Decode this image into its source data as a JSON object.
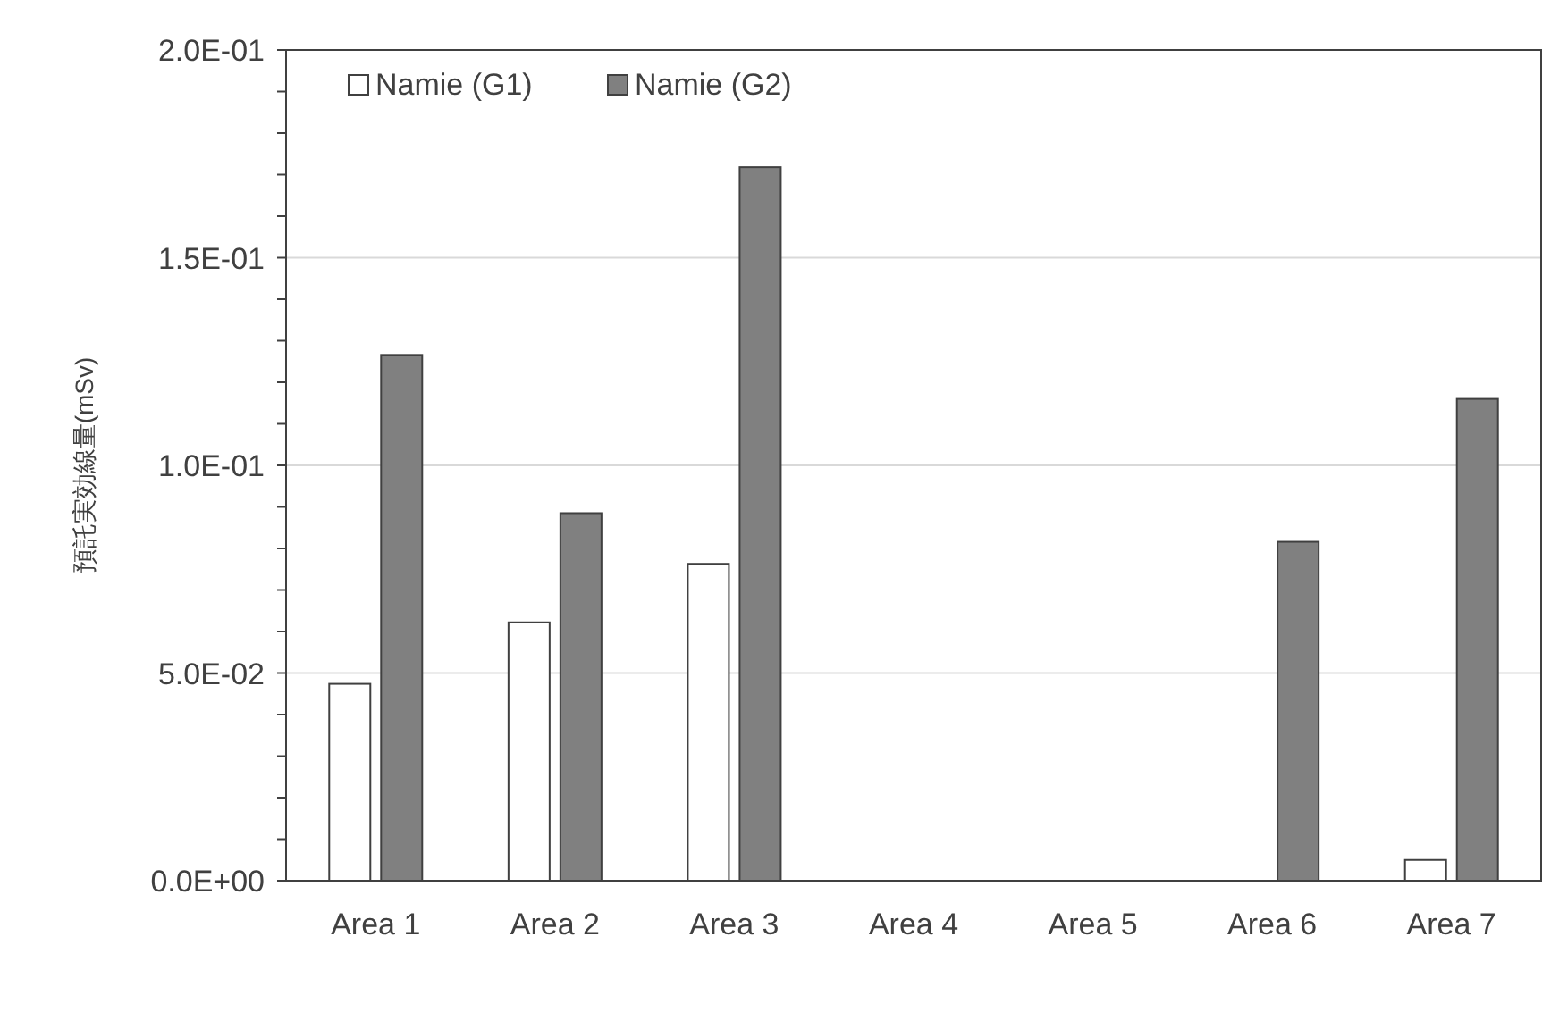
{
  "chart_data": {
    "type": "bar",
    "ylabel": "預託実効線量(mSv)",
    "categories": [
      "Area 1",
      "Area 2",
      "Area 3",
      "Area 4",
      "Area 5",
      "Area 6",
      "Area 7"
    ],
    "series": [
      {
        "name": "Namie (G1)",
        "color": "#ffffff",
        "values": [
          0.0474,
          0.0622,
          0.0763,
          null,
          null,
          null,
          0.005
        ]
      },
      {
        "name": "Namie (G2)",
        "color": "#808080",
        "values": [
          0.1266,
          0.0885,
          0.1718,
          null,
          null,
          0.0816,
          0.116
        ]
      }
    ],
    "ylim": [
      0,
      0.2
    ],
    "yticks": [
      {
        "value": 0,
        "label": "0.0E+00"
      },
      {
        "value": 0.01,
        "label": null
      },
      {
        "value": 0.02,
        "label": null
      },
      {
        "value": 0.03,
        "label": null
      },
      {
        "value": 0.04,
        "label": null
      },
      {
        "value": 0.05,
        "label": "5.0E-02"
      },
      {
        "value": 0.06,
        "label": null
      },
      {
        "value": 0.07,
        "label": null
      },
      {
        "value": 0.08,
        "label": null
      },
      {
        "value": 0.09,
        "label": null
      },
      {
        "value": 0.1,
        "label": "1.0E-01"
      },
      {
        "value": 0.11,
        "label": null
      },
      {
        "value": 0.12,
        "label": null
      },
      {
        "value": 0.13,
        "label": null
      },
      {
        "value": 0.14,
        "label": null
      },
      {
        "value": 0.15,
        "label": "1.5E-01"
      },
      {
        "value": 0.16,
        "label": null
      },
      {
        "value": 0.17,
        "label": null
      },
      {
        "value": 0.18,
        "label": null
      },
      {
        "value": 0.19,
        "label": null
      },
      {
        "value": 0.2,
        "label": "2.0E-01"
      }
    ],
    "grid": "y",
    "legend": "top left"
  }
}
